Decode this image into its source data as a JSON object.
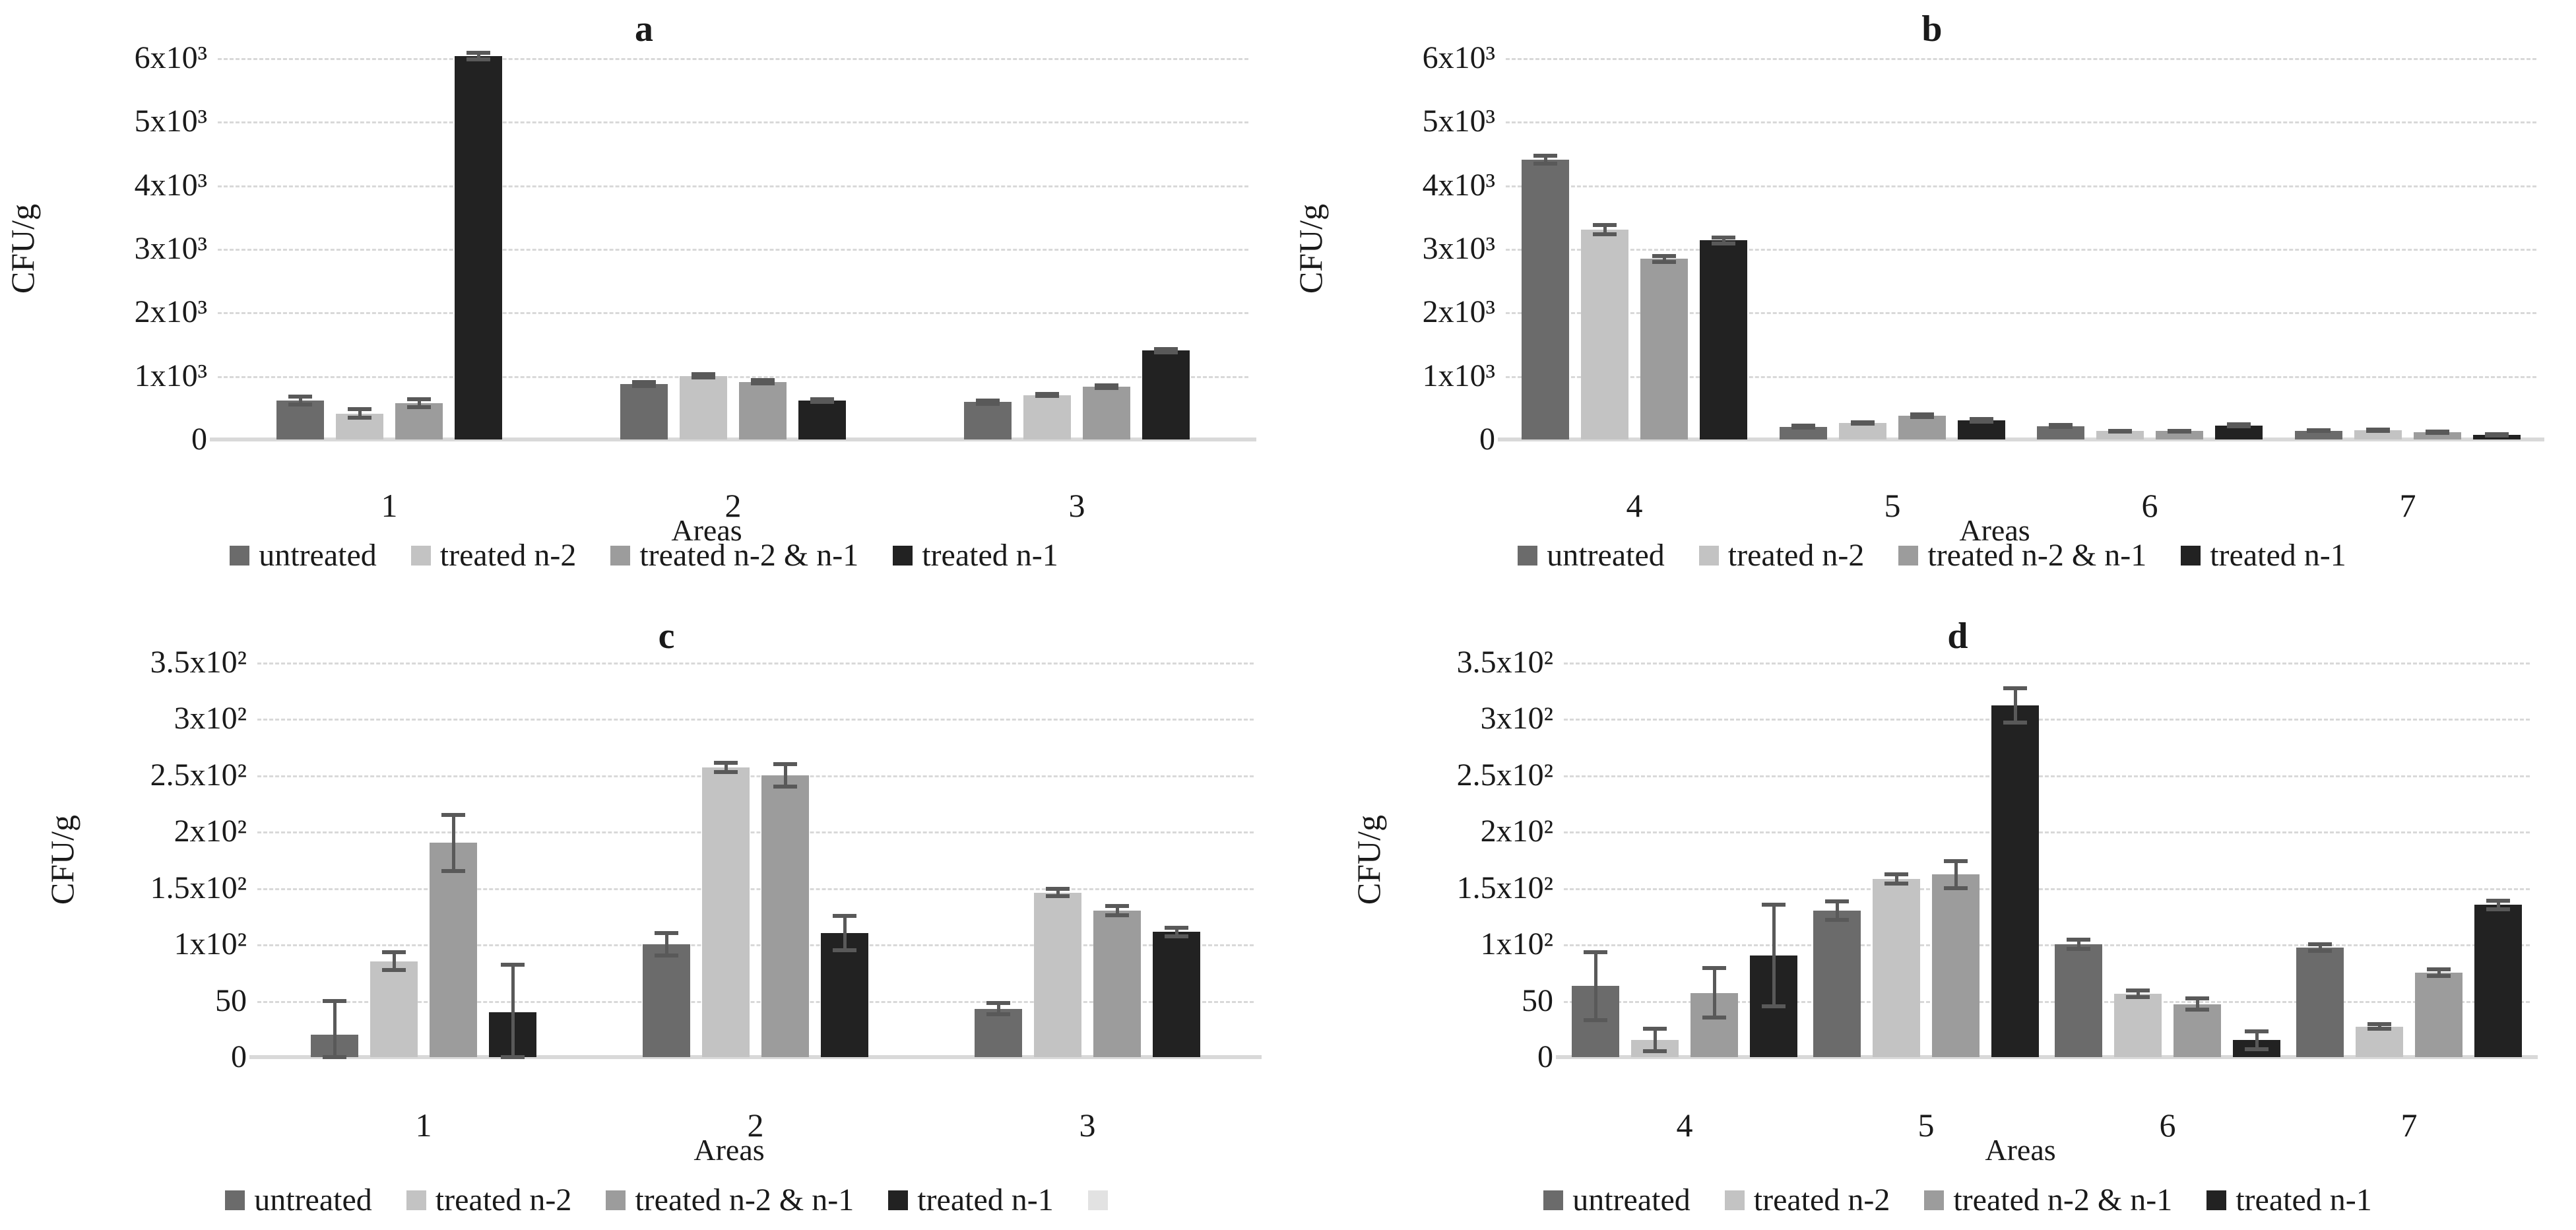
{
  "style": {
    "background": "#ffffff",
    "text_color": "#1a1a1a",
    "grid_color": "#d9d9d9",
    "axis_line_color": "#d9d9d9",
    "error_bar_color": "#595959",
    "series_colors": {
      "untreated": "#6b6b6b",
      "treated n-2": "#c3c3c3",
      "treated n-2 & n-1": "#9c9c9c",
      "treated n-1": "#222222"
    },
    "extra_swatch_color": "#e2e2e2"
  },
  "chart_data": [
    {
      "id": "a",
      "type": "bar",
      "title": "a",
      "ylabel": "CFU/g",
      "xlabel": "Areas",
      "ylim": [
        0,
        6000
      ],
      "grid": true,
      "legend_position": "bottom",
      "yticks": [
        {
          "value": 6000,
          "label": "6x10³"
        },
        {
          "value": 5000,
          "label": "5x10³"
        },
        {
          "value": 4000,
          "label": "4x10³"
        },
        {
          "value": 3000,
          "label": "3x10³"
        },
        {
          "value": 2000,
          "label": "2x10³"
        },
        {
          "value": 1000,
          "label": "1x10³"
        },
        {
          "value": 0,
          "label": "0"
        }
      ],
      "categories": [
        "1",
        "2",
        "3"
      ],
      "series": [
        {
          "name": "untreated",
          "values": [
            610,
            875,
            590
          ],
          "errors": [
            65,
            30,
            25
          ]
        },
        {
          "name": "treated n-2",
          "values": [
            410,
            1000,
            700
          ],
          "errors": [
            70,
            25,
            20
          ]
        },
        {
          "name": "treated n-2 & n-1",
          "values": [
            570,
            905,
            830
          ],
          "errors": [
            60,
            25,
            20
          ]
        },
        {
          "name": "treated n-1",
          "values": [
            6030,
            610,
            1400
          ],
          "errors": [
            50,
            20,
            25
          ]
        }
      ],
      "legend": [
        "untreated",
        "treated n-2",
        "treated n-2 & n-1",
        "treated n-1"
      ],
      "has_extra_legend_swatch": false
    },
    {
      "id": "b",
      "type": "bar",
      "title": "b",
      "ylabel": "CFU/g",
      "xlabel": "Areas",
      "ylim": [
        0,
        6000
      ],
      "grid": true,
      "legend_position": "bottom",
      "yticks": [
        {
          "value": 6000,
          "label": "6x10³"
        },
        {
          "value": 5000,
          "label": "5x10³"
        },
        {
          "value": 4000,
          "label": "4x10³"
        },
        {
          "value": 3000,
          "label": "3x10³"
        },
        {
          "value": 2000,
          "label": "2x10³"
        },
        {
          "value": 1000,
          "label": "1x10³"
        },
        {
          "value": 0,
          "label": "0"
        }
      ],
      "categories": [
        "4",
        "5",
        "6",
        "7"
      ],
      "series": [
        {
          "name": "untreated",
          "values": [
            4400,
            200,
            210,
            140
          ],
          "errors": [
            60,
            15,
            15,
            10
          ]
        },
        {
          "name": "treated n-2",
          "values": [
            3300,
            260,
            130,
            150
          ],
          "errors": [
            70,
            15,
            10,
            10
          ]
        },
        {
          "name": "treated n-2 & n-1",
          "values": [
            2840,
            370,
            130,
            110
          ],
          "errors": [
            50,
            20,
            10,
            10
          ]
        },
        {
          "name": "treated n-1",
          "values": [
            3130,
            300,
            220,
            75
          ],
          "errors": [
            50,
            20,
            15,
            8
          ]
        }
      ],
      "legend": [
        "untreated",
        "treated n-2",
        "treated n-2 & n-1",
        "treated n-1"
      ],
      "has_extra_legend_swatch": false
    },
    {
      "id": "c",
      "type": "bar",
      "title": "c",
      "ylabel": "CFU/g",
      "xlabel": "Areas",
      "ylim": [
        0,
        350
      ],
      "grid": true,
      "legend_position": "bottom",
      "yticks": [
        {
          "value": 350,
          "label": "3.5x10²"
        },
        {
          "value": 300,
          "label": "3x10²"
        },
        {
          "value": 250,
          "label": "2.5x10²"
        },
        {
          "value": 200,
          "label": "2x10²"
        },
        {
          "value": 150,
          "label": "1.5x10²"
        },
        {
          "value": 100,
          "label": "1x10²"
        },
        {
          "value": 50,
          "label": "50"
        },
        {
          "value": 0,
          "label": "0"
        }
      ],
      "categories": [
        "1",
        "2",
        "3"
      ],
      "series": [
        {
          "name": "untreated",
          "values": [
            20,
            100,
            43
          ],
          "errors": [
            30,
            10,
            5
          ]
        },
        {
          "name": "treated n-2",
          "values": [
            85,
            257,
            146
          ],
          "errors": [
            8,
            4,
            3
          ]
        },
        {
          "name": "treated n-2 & n-1",
          "values": [
            190,
            250,
            130
          ],
          "errors": [
            25,
            10,
            4
          ]
        },
        {
          "name": "treated n-1",
          "values": [
            40,
            110,
            111
          ],
          "errors": [
            42,
            15,
            4
          ]
        }
      ],
      "legend": [
        "untreated",
        "treated n-2",
        "treated n-2 & n-1",
        "treated n-1"
      ],
      "has_extra_legend_swatch": true
    },
    {
      "id": "d",
      "type": "bar",
      "title": "d",
      "ylabel": "CFU/g",
      "xlabel": "Areas",
      "ylim": [
        0,
        350
      ],
      "grid": true,
      "legend_position": "bottom",
      "yticks": [
        {
          "value": 350,
          "label": "3.5x10²"
        },
        {
          "value": 300,
          "label": "3x10²"
        },
        {
          "value": 250,
          "label": "2.5x10²"
        },
        {
          "value": 200,
          "label": "2x10²"
        },
        {
          "value": 150,
          "label": "1.5x10²"
        },
        {
          "value": 100,
          "label": "1x10²"
        },
        {
          "value": 50,
          "label": "50"
        },
        {
          "value": 0,
          "label": "0"
        }
      ],
      "categories": [
        "4",
        "5",
        "6",
        "7"
      ],
      "series": [
        {
          "name": "untreated",
          "values": [
            63,
            130,
            100,
            97
          ],
          "errors": [
            30,
            8,
            4,
            3
          ]
        },
        {
          "name": "treated n-2",
          "values": [
            15,
            158,
            56,
            27
          ],
          "errors": [
            10,
            4,
            3,
            2
          ]
        },
        {
          "name": "treated n-2 & n-1",
          "values": [
            57,
            162,
            47,
            75
          ],
          "errors": [
            22,
            12,
            5,
            3
          ]
        },
        {
          "name": "treated n-1",
          "values": [
            90,
            312,
            15,
            135
          ],
          "errors": [
            45,
            15,
            8,
            4
          ]
        }
      ],
      "legend": [
        "untreated",
        "treated n-2",
        "treated n-2 & n-1",
        "treated n-1"
      ],
      "has_extra_legend_swatch": false
    }
  ]
}
